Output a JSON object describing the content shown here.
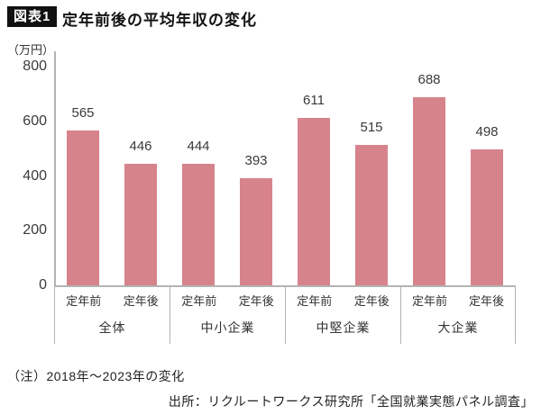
{
  "header": {
    "badge": "図表1",
    "title": "定年前後の平均年収の変化"
  },
  "chart_data": {
    "type": "bar",
    "title": "定年前後の平均年収の変化",
    "unit_label": "（万円）",
    "ylabel": "万円",
    "ylim": [
      0,
      800
    ],
    "yticks": [
      0,
      200,
      400,
      600,
      800
    ],
    "grid": false,
    "legend": null,
    "sub_categories": [
      "定年前",
      "定年後"
    ],
    "groups": [
      {
        "label": "全体",
        "bars": [
          {
            "label": "定年前",
            "value": 565
          },
          {
            "label": "定年後",
            "value": 446
          }
        ]
      },
      {
        "label": "中小企業",
        "bars": [
          {
            "label": "定年前",
            "value": 444
          },
          {
            "label": "定年後",
            "value": 393
          }
        ]
      },
      {
        "label": "中堅企業",
        "bars": [
          {
            "label": "定年前",
            "value": 611
          },
          {
            "label": "定年後",
            "value": 515
          }
        ]
      },
      {
        "label": "大企業",
        "bars": [
          {
            "label": "定年前",
            "value": 688
          },
          {
            "label": "定年後",
            "value": 498
          }
        ]
      }
    ],
    "bar_color": "#d7838c",
    "axis_color": "#b3b3b3"
  },
  "notes": {
    "note": "（注）2018年～2023年の変化",
    "source": "出所：リクルートワークス研究所「全国就業実態パネル調査」"
  }
}
